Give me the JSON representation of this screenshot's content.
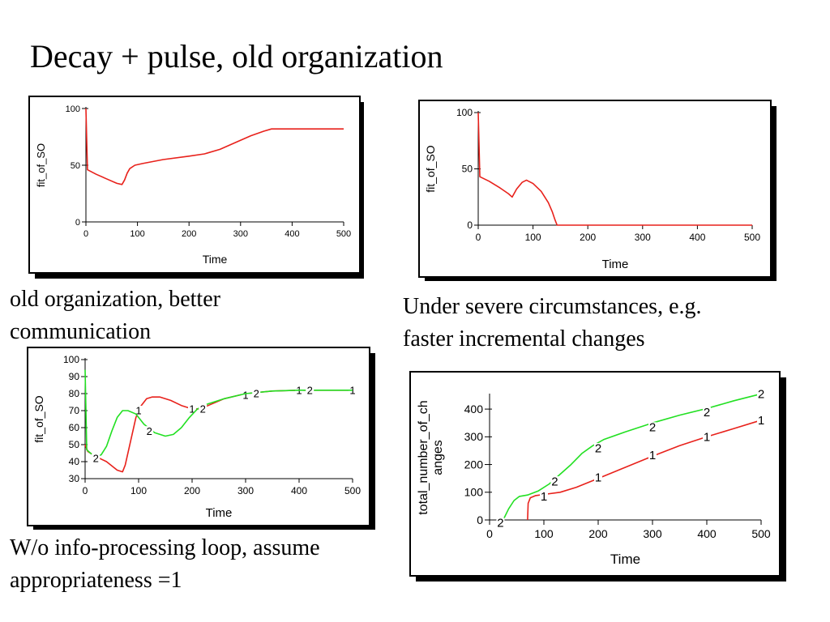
{
  "slide": {
    "title": "Decay + pulse, old organization",
    "captions": {
      "top_left": [
        "old organization, better",
        "communication"
      ],
      "top_right": [
        "Under severe circumstances, e.g.",
        "faster incremental changes"
      ],
      "bottom_left": [
        "W/o info-processing loop, assume",
        "appropriateness =1"
      ]
    }
  },
  "colors": {
    "series1": "#e8211b",
    "series2": "#22e022",
    "axis": "#000000"
  },
  "chart_data": [
    {
      "type": "line",
      "xlabel": "Time",
      "ylabel": "fit_of_SO",
      "xlim": [
        0,
        500
      ],
      "ylim": [
        0,
        100
      ],
      "xticks": [
        0,
        100,
        200,
        300,
        400,
        500
      ],
      "yticks": [
        0,
        50,
        100
      ],
      "series": [
        {
          "values": [
            [
              0,
              100
            ],
            [
              3,
              46
            ],
            [
              20,
              42
            ],
            [
              40,
              38
            ],
            [
              60,
              34
            ],
            [
              70,
              33
            ],
            [
              75,
              37
            ],
            [
              80,
              43
            ],
            [
              85,
              47
            ],
            [
              95,
              50
            ],
            [
              110,
              51.5
            ],
            [
              150,
              55
            ],
            [
              200,
              58
            ],
            [
              230,
              60
            ],
            [
              260,
              64
            ],
            [
              290,
              70
            ],
            [
              320,
              76
            ],
            [
              345,
              80
            ],
            [
              360,
              82
            ],
            [
              500,
              82
            ]
          ]
        }
      ]
    },
    {
      "type": "line",
      "xlabel": "Time",
      "ylabel": "fit_of_SO",
      "xlim": [
        0,
        500
      ],
      "ylim": [
        0,
        100
      ],
      "xticks": [
        0,
        100,
        200,
        300,
        400,
        500
      ],
      "yticks": [
        0,
        50,
        100
      ],
      "series": [
        {
          "values": [
            [
              0,
              100
            ],
            [
              3,
              43
            ],
            [
              20,
              39
            ],
            [
              40,
              33
            ],
            [
              55,
              28
            ],
            [
              62,
              25
            ],
            [
              70,
              32
            ],
            [
              80,
              38
            ],
            [
              88,
              40
            ],
            [
              100,
              37
            ],
            [
              115,
              30
            ],
            [
              128,
              20
            ],
            [
              135,
              12
            ],
            [
              140,
              5
            ],
            [
              144,
              0
            ],
            [
              500,
              0
            ]
          ]
        }
      ]
    },
    {
      "type": "line",
      "xlabel": "Time",
      "ylabel": "fit_of_SO",
      "xlim": [
        0,
        500
      ],
      "ylim": [
        30,
        100
      ],
      "xticks": [
        0,
        100,
        200,
        300,
        400,
        500
      ],
      "yticks": [
        30,
        40,
        50,
        60,
        70,
        80,
        90,
        100
      ],
      "series": [
        {
          "name": "1",
          "values": [
            [
              0,
              50
            ],
            [
              5,
              46
            ],
            [
              20,
              43
            ],
            [
              40,
              40
            ],
            [
              60,
              35
            ],
            [
              70,
              34
            ],
            [
              75,
              38
            ],
            [
              85,
              52
            ],
            [
              95,
              66
            ],
            [
              105,
              73
            ],
            [
              115,
              77
            ],
            [
              125,
              78
            ],
            [
              140,
              78
            ],
            [
              160,
              76
            ],
            [
              180,
              73
            ],
            [
              200,
              71
            ],
            [
              215,
              71
            ],
            [
              230,
              73
            ],
            [
              260,
              77
            ],
            [
              300,
              80
            ],
            [
              350,
              81.5
            ],
            [
              400,
              82
            ],
            [
              500,
              82
            ]
          ],
          "markers": [
            [
              100,
              70
            ],
            [
              200,
              71
            ],
            [
              300,
              79
            ],
            [
              400,
              82
            ],
            [
              500,
              82
            ]
          ]
        },
        {
          "name": "2",
          "values": [
            [
              0,
              94
            ],
            [
              3,
              47
            ],
            [
              10,
              45
            ],
            [
              20,
              43
            ],
            [
              30,
              44
            ],
            [
              40,
              49
            ],
            [
              50,
              58
            ],
            [
              60,
              66
            ],
            [
              70,
              70
            ],
            [
              80,
              70
            ],
            [
              95,
              68
            ],
            [
              110,
              62
            ],
            [
              130,
              57
            ],
            [
              150,
              55
            ],
            [
              165,
              56
            ],
            [
              180,
              60
            ],
            [
              195,
              66
            ],
            [
              210,
              71
            ],
            [
              230,
              74
            ],
            [
              260,
              77
            ],
            [
              300,
              80
            ],
            [
              350,
              81.5
            ],
            [
              400,
              82
            ],
            [
              500,
              82
            ]
          ],
          "markers": [
            [
              20,
              42
            ],
            [
              120,
              58
            ],
            [
              220,
              71
            ],
            [
              320,
              80
            ],
            [
              420,
              82
            ]
          ]
        }
      ]
    },
    {
      "type": "line",
      "xlabel": "Time",
      "ylabel": "total_number_of_changes",
      "ylabel_lines": [
        "total_number_of_ch",
        "anges"
      ],
      "xlim": [
        0,
        500
      ],
      "ylim": [
        0,
        450
      ],
      "xticks": [
        0,
        100,
        200,
        300,
        400,
        500
      ],
      "yticks": [
        0,
        100,
        200,
        300,
        400
      ],
      "series": [
        {
          "name": "1",
          "values": [
            [
              70,
              0
            ],
            [
              71,
              60
            ],
            [
              75,
              80
            ],
            [
              85,
              88
            ],
            [
              100,
              92
            ],
            [
              130,
              100
            ],
            [
              160,
              118
            ],
            [
              200,
              150
            ],
            [
              250,
              190
            ],
            [
              300,
              230
            ],
            [
              350,
              268
            ],
            [
              400,
              300
            ],
            [
              450,
              330
            ],
            [
              500,
              360
            ]
          ],
          "markers": [
            [
              100,
              85
            ],
            [
              200,
              155
            ],
            [
              300,
              235
            ],
            [
              400,
              300
            ],
            [
              500,
              360
            ]
          ]
        },
        {
          "name": "2",
          "values": [
            [
              25,
              0
            ],
            [
              35,
              40
            ],
            [
              45,
              70
            ],
            [
              55,
              85
            ],
            [
              70,
              90
            ],
            [
              90,
              105
            ],
            [
              110,
              130
            ],
            [
              130,
              165
            ],
            [
              150,
              200
            ],
            [
              170,
              240
            ],
            [
              190,
              268
            ],
            [
              210,
              290
            ],
            [
              250,
              318
            ],
            [
              300,
              350
            ],
            [
              350,
              378
            ],
            [
              400,
              402
            ],
            [
              450,
              430
            ],
            [
              500,
              455
            ]
          ],
          "markers": [
            [
              20,
              -10
            ],
            [
              120,
              140
            ],
            [
              200,
              260
            ],
            [
              300,
              335
            ],
            [
              400,
              390
            ],
            [
              500,
              455
            ]
          ]
        }
      ]
    }
  ]
}
